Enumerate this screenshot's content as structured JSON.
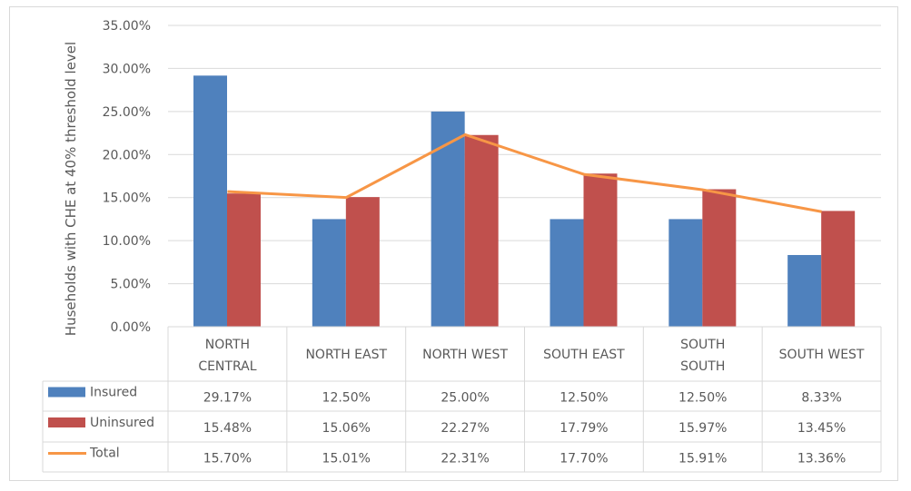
{
  "chart_data": {
    "type": "bar",
    "title": "",
    "xlabel": "",
    "ylabel": "Huseholds with CHE at 40% threshold  level",
    "ylim": [
      0,
      0.35
    ],
    "yticks": [
      "0.00%",
      "5.00%",
      "10.00%",
      "15.00%",
      "20.00%",
      "25.00%",
      "30.00%",
      "35.00%"
    ],
    "grid": true,
    "legend": "data-table",
    "categories": [
      [
        "NORTH",
        "CENTRAL"
      ],
      [
        "NORTH EAST"
      ],
      [
        "NORTH WEST"
      ],
      [
        "SOUTH EAST"
      ],
      [
        "SOUTH",
        "SOUTH"
      ],
      [
        "SOUTH WEST"
      ]
    ],
    "series": [
      {
        "name": "Insured",
        "kind": "bar",
        "color": "#4f81bd",
        "values": [
          0.2917,
          0.125,
          0.25,
          0.125,
          0.125,
          0.0833
        ],
        "labels": [
          "29.17%",
          "12.50%",
          "25.00%",
          "12.50%",
          "12.50%",
          "8.33%"
        ]
      },
      {
        "name": "Uninsured",
        "kind": "bar",
        "color": "#c0504d",
        "values": [
          0.1548,
          0.1506,
          0.2227,
          0.1779,
          0.1597,
          0.1345
        ],
        "labels": [
          "15.48%",
          "15.06%",
          "22.27%",
          "17.79%",
          "15.97%",
          "13.45%"
        ]
      },
      {
        "name": "Total",
        "kind": "line",
        "color": "#f79646",
        "values": [
          0.157,
          0.1501,
          0.2231,
          0.177,
          0.1591,
          0.1336
        ],
        "labels": [
          "15.70%",
          "15.01%",
          "22.31%",
          "17.70%",
          "15.91%",
          "13.36%"
        ]
      }
    ]
  }
}
